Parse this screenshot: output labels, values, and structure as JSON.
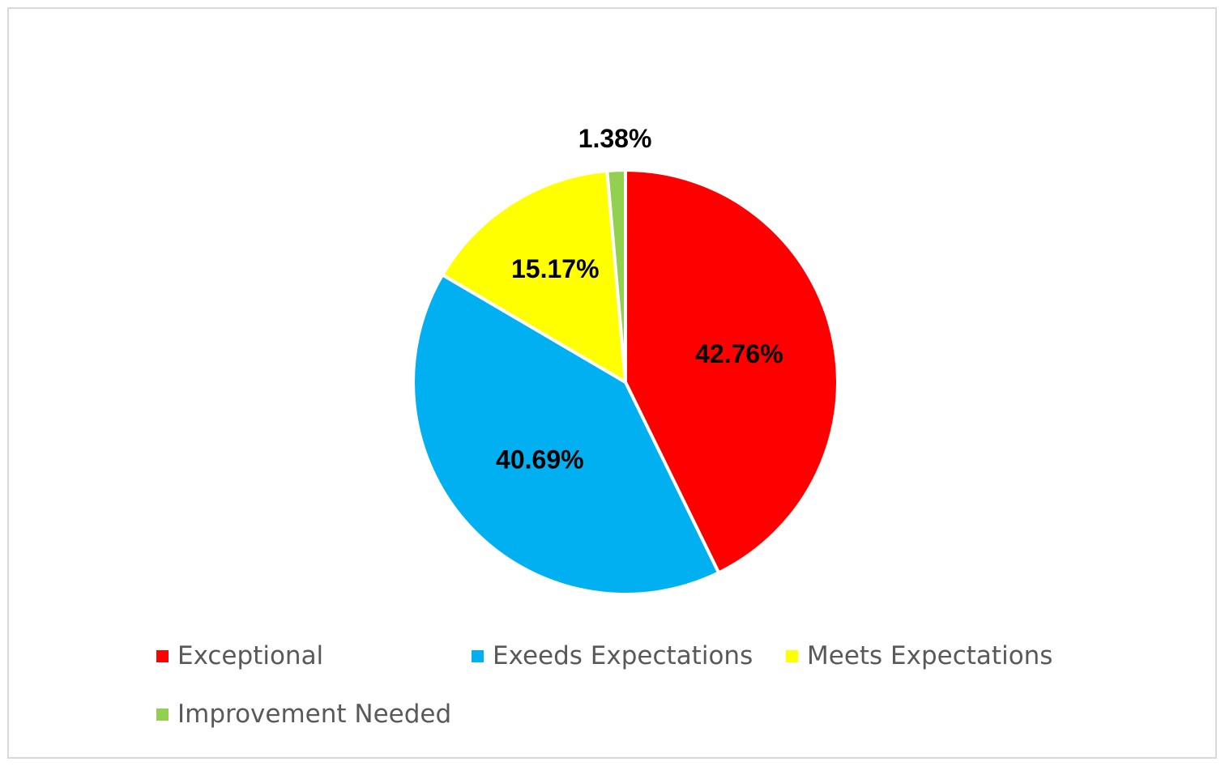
{
  "chart_data": {
    "type": "pie",
    "title": "",
    "legend_position": "bottom",
    "slices": [
      {
        "name": "Exceptional",
        "value": 42.76,
        "label": "42.76%",
        "color": "#FF0000"
      },
      {
        "name": "Exeeds Expectations",
        "value": 40.69,
        "label": "40.69%",
        "color": "#00B0F0"
      },
      {
        "name": "Meets Expectations",
        "value": 15.17,
        "label": "15.17%",
        "color": "#FFFF00"
      },
      {
        "name": "Improvement Needed",
        "value": 1.38,
        "label": "1.38%",
        "color": "#92D050"
      }
    ]
  }
}
